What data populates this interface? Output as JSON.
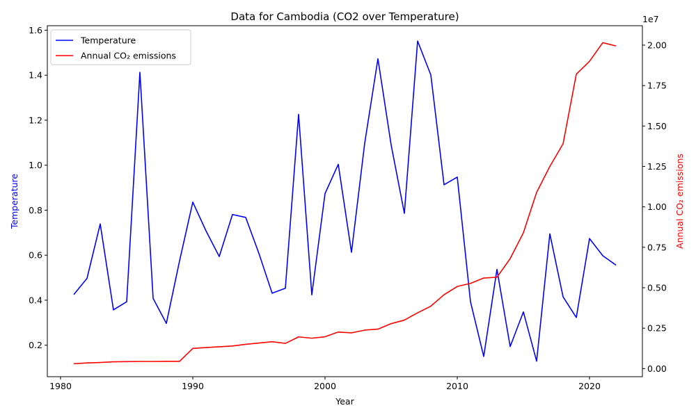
{
  "chart_data": {
    "type": "line",
    "title": "Data for Cambodia (CO2 over Temperature)",
    "xlabel": "Year",
    "ylabel_left": "Temperature",
    "ylabel_right": "Annual CO₂ emissions",
    "right_axis_offset_label": "1e7",
    "xlim": [
      1979,
      2024
    ],
    "ylim_left": [
      0.06,
      1.62
    ],
    "ylim_right": [
      -500000,
      21200000
    ],
    "x_ticks": [
      1980,
      1990,
      2000,
      2010,
      2020
    ],
    "y_ticks_left": [
      0.2,
      0.4,
      0.6,
      0.8,
      1.0,
      1.2,
      1.4,
      1.6
    ],
    "y_ticks_left_labels": [
      "0.2",
      "0.4",
      "0.6",
      "0.8",
      "1.0",
      "1.2",
      "1.4",
      "1.6"
    ],
    "y_ticks_right": [
      0,
      2500000,
      5000000,
      7500000,
      10000000,
      12500000,
      15000000,
      17500000,
      20000000
    ],
    "y_ticks_right_labels": [
      "0.00",
      "0.25",
      "0.50",
      "0.75",
      "1.00",
      "1.25",
      "1.50",
      "1.75",
      "2.00"
    ],
    "legend_position": "top-left",
    "grid": false,
    "x": [
      1981,
      1982,
      1983,
      1984,
      1985,
      1986,
      1987,
      1988,
      1989,
      1990,
      1991,
      1992,
      1993,
      1994,
      1995,
      1996,
      1997,
      1998,
      1999,
      2000,
      2001,
      2002,
      2003,
      2004,
      2005,
      2006,
      2007,
      2008,
      2009,
      2010,
      2011,
      2012,
      2013,
      2014,
      2015,
      2016,
      2017,
      2018,
      2019,
      2020,
      2021,
      2022
    ],
    "series": [
      {
        "name": "Temperature",
        "axis": "left",
        "color": "#0000ff",
        "values": [
          0.425,
          0.497,
          0.739,
          0.357,
          0.393,
          1.413,
          0.408,
          0.297,
          0.575,
          0.836,
          0.708,
          0.594,
          0.781,
          0.768,
          0.608,
          0.431,
          0.453,
          1.226,
          0.424,
          0.874,
          1.004,
          0.613,
          1.098,
          1.473,
          1.09,
          0.786,
          1.552,
          1.401,
          0.913,
          0.947,
          0.393,
          0.15,
          0.537,
          0.194,
          0.348,
          0.129,
          0.695,
          0.415,
          0.323,
          0.674,
          0.598,
          0.556
        ]
      },
      {
        "name": "Annual CO₂ emissions",
        "axis": "right",
        "color": "#ff0000",
        "values": [
          300000,
          350000,
          380000,
          420000,
          430000,
          440000,
          440000,
          450000,
          450000,
          1250000,
          1300000,
          1350000,
          1400000,
          1500000,
          1580000,
          1660000,
          1560000,
          1960000,
          1880000,
          1970000,
          2260000,
          2210000,
          2380000,
          2440000,
          2780000,
          3000000,
          3450000,
          3860000,
          4570000,
          5080000,
          5270000,
          5600000,
          5650000,
          6800000,
          8400000,
          10900000,
          12500000,
          13900000,
          18200000,
          19000000,
          20150000,
          19950000
        ]
      }
    ]
  }
}
